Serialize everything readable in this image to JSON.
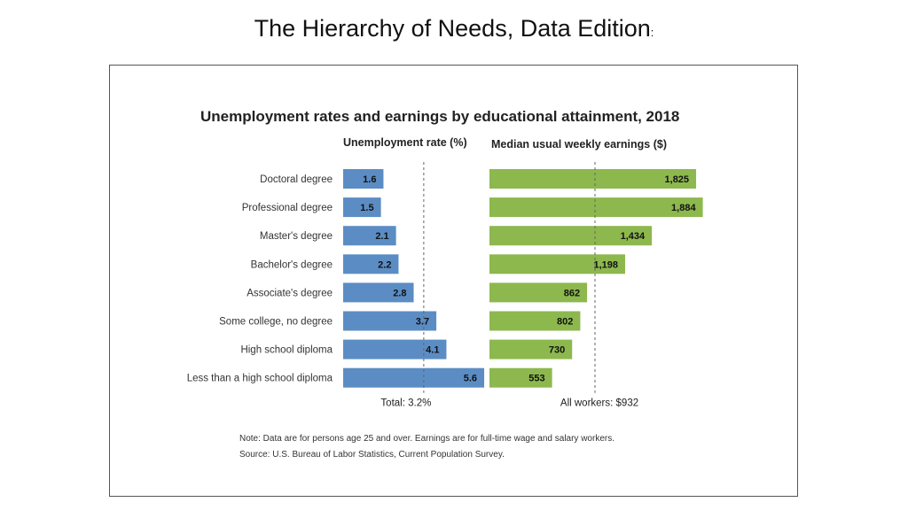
{
  "slide": {
    "title": "The Hierarchy of Needs, Data Edition",
    "title_suffix": ":"
  },
  "chart_data": {
    "type": "bar",
    "title": "Unemployment rates and earnings by educational attainment, 2018",
    "categories": [
      "Doctoral degree",
      "Professional degree",
      "Master's degree",
      "Bachelor's degree",
      "Associate's degree",
      "Some college, no degree",
      "High school diploma",
      "Less than a high school diploma"
    ],
    "series": [
      {
        "name": "Unemployment rate (%)",
        "color": "#5b8dc4",
        "values": [
          1.6,
          1.5,
          2.1,
          2.2,
          2.8,
          3.7,
          4.1,
          5.6
        ],
        "labels": [
          "1.6",
          "1.5",
          "2.1",
          "2.2",
          "2.8",
          "3.7",
          "4.1",
          "5.6"
        ],
        "reference_value": 3.2,
        "reference_label": "Total: 3.2%"
      },
      {
        "name": "Median usual weekly earnings ($)",
        "color": "#8db84e",
        "values": [
          1825,
          1884,
          1434,
          1198,
          862,
          802,
          730,
          553
        ],
        "labels": [
          "1,825",
          "1,884",
          "1,434",
          "1,198",
          "862",
          "802",
          "730",
          "553"
        ],
        "reference_value": 932,
        "reference_label": "All workers: $932"
      }
    ],
    "notes": [
      "Note: Data are for persons age 25 and over. Earnings are for full-time wage and salary workers.",
      "Source: U.S. Bureau of Labor Statistics, Current Population Survey."
    ],
    "grid": false,
    "legend": "none"
  }
}
